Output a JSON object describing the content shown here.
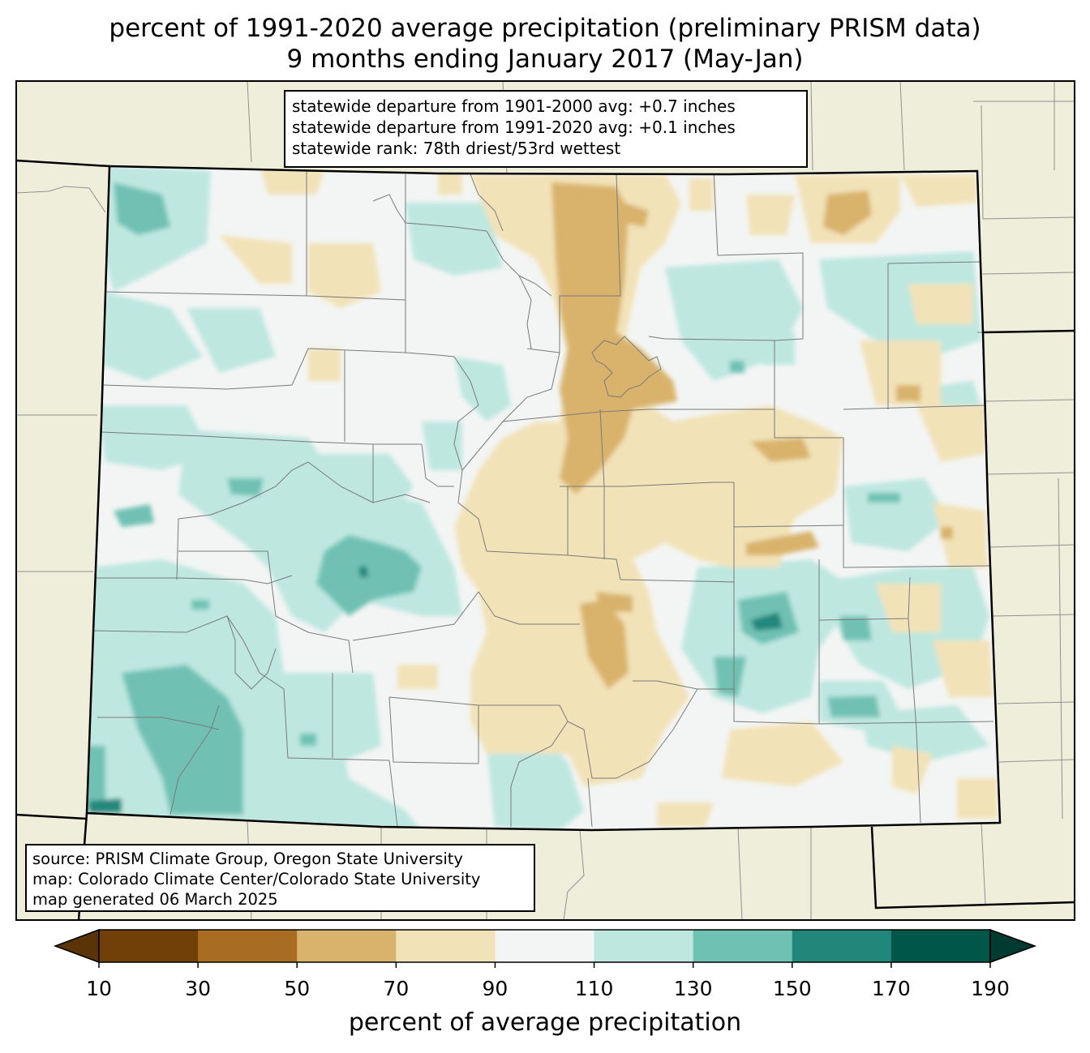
{
  "title_line1": "percent of 1991-2020 average precipitation (preliminary PRISM data)",
  "title_line2": "9 months ending January 2017 (May-Jan)",
  "stats": {
    "line1": "statewide departure from 1901-2000 avg: +0.7 inches",
    "line2": "statewide departure from 1991-2020 avg: +0.1 inches",
    "line3": "statewide rank: 78th driest/53rd wettest"
  },
  "source": {
    "line1": "source: PRISM Climate Group, Oregon State University",
    "line2": "map: Colorado Climate Center/Colorado State University",
    "line3": "map generated 06 March 2025"
  },
  "colorbar": {
    "label": "percent of average precipitation",
    "ticks": [
      "10",
      "30",
      "50",
      "70",
      "90",
      "110",
      "130",
      "150",
      "170",
      "190"
    ],
    "colors": [
      "#5a3307",
      "#714008",
      "#a86d22",
      "#d9b36c",
      "#f2e2b8",
      "#f3f5f4",
      "#bee7e0",
      "#6fc1b4",
      "#21877b",
      "#01564a",
      "#003a30"
    ]
  },
  "colors": {
    "land_outside": "#efeeda",
    "state_default": "#f3f5f4",
    "border": "#000000",
    "county": "#808080"
  }
}
